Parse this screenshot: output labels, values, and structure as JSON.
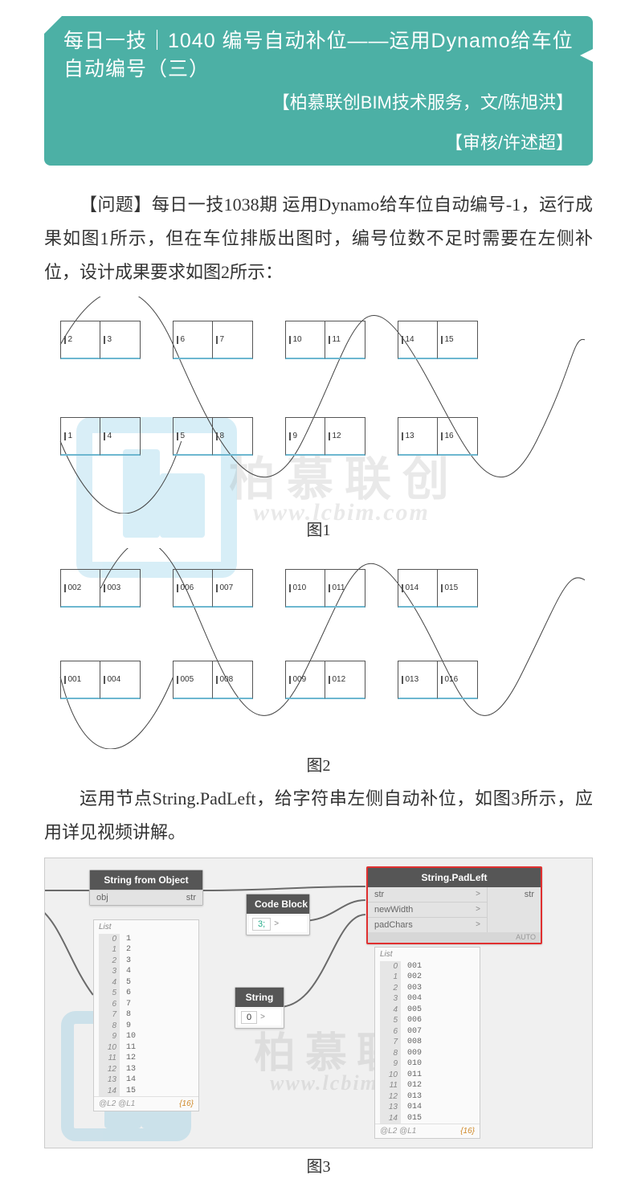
{
  "header": {
    "title": "每日一技｜1040 编号自动补位——运用Dynamo给车位自动编号（三）",
    "subtitle": "【柏慕联创BIM技术服务，文/陈旭洪】",
    "reviewer": "【审核/许述超】",
    "bg_color": "#4cb0a5",
    "text_color": "#ffffff"
  },
  "paragraphs": {
    "p1": "【问题】每日一技1038期 运用Dynamo给车位自动编号-1，运行成果如图1所示，但在车位排版出图时，编号位数不足时需要在左侧补位，设计成果要求如图2所示：",
    "p2": "运用节点String.PadLeft，给字符串左侧自动补位，如图3所示，应用详见视频讲解。"
  },
  "figures": {
    "fig1": {
      "caption": "图1",
      "row_top": [
        "2",
        "3",
        "6",
        "7",
        "10",
        "11",
        "14",
        "15"
      ],
      "row_bot": [
        "1",
        "4",
        "5",
        "8",
        "9",
        "12",
        "13",
        "16"
      ],
      "slot_border": "#555555",
      "slot_underline": "#6db7d0"
    },
    "fig2": {
      "caption": "图2",
      "row_top": [
        "002",
        "003",
        "006",
        "007",
        "010",
        "011",
        "014",
        "015"
      ],
      "row_bot": [
        "001",
        "004",
        "005",
        "008",
        "009",
        "012",
        "013",
        "016"
      ],
      "slot_border": "#555555",
      "slot_underline": "#6db7d0"
    },
    "fig3": {
      "caption": "图3"
    }
  },
  "watermark": {
    "brand": "柏慕联创",
    "url": "www.lcbim.com",
    "logo_color": "#2aa3d4",
    "text_color": "#8c8c8c"
  },
  "dynamo": {
    "bg_color": "#f0f0f0",
    "wire_color": "#6a6a6a",
    "nodes": {
      "sfo": {
        "title": "String from Object",
        "ports_in": [
          "obj"
        ],
        "ports_out": [
          "str"
        ]
      },
      "codeblock": {
        "title": "Code Block",
        "code": "3;",
        "out_port": ">"
      },
      "string": {
        "title": "String",
        "value": "0",
        "out_port": ">"
      },
      "padleft": {
        "title": "String.PadLeft",
        "ports_in": [
          "str",
          "newWidth",
          "padChars"
        ],
        "ports_out": [
          "str"
        ],
        "auto": "AUTO",
        "highlight": "#e03030"
      }
    },
    "list_left": {
      "head": "List",
      "rows": [
        [
          "0",
          "1"
        ],
        [
          "1",
          "2"
        ],
        [
          "2",
          "3"
        ],
        [
          "3",
          "4"
        ],
        [
          "4",
          "5"
        ],
        [
          "5",
          "6"
        ],
        [
          "6",
          "7"
        ],
        [
          "7",
          "8"
        ],
        [
          "8",
          "9"
        ],
        [
          "9",
          "10"
        ],
        [
          "10",
          "11"
        ],
        [
          "11",
          "12"
        ],
        [
          "12",
          "13"
        ],
        [
          "13",
          "14"
        ],
        [
          "14",
          "15"
        ]
      ],
      "foot_l": "@L2 @L1",
      "foot_r": "{16}"
    },
    "list_right": {
      "head": "List",
      "rows": [
        [
          "0",
          "001"
        ],
        [
          "1",
          "002"
        ],
        [
          "2",
          "003"
        ],
        [
          "3",
          "004"
        ],
        [
          "4",
          "005"
        ],
        [
          "5",
          "006"
        ],
        [
          "6",
          "007"
        ],
        [
          "7",
          "008"
        ],
        [
          "8",
          "009"
        ],
        [
          "9",
          "010"
        ],
        [
          "10",
          "011"
        ],
        [
          "11",
          "012"
        ],
        [
          "12",
          "013"
        ],
        [
          "13",
          "014"
        ],
        [
          "14",
          "015"
        ]
      ],
      "foot_l": "@L2 @L1",
      "foot_r": "{16}"
    }
  }
}
